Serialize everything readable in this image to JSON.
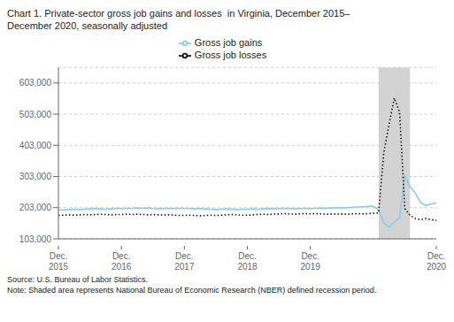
{
  "chart_data": {
    "type": "line",
    "title": "Chart 1. Private-sector gross job gains and losses  in Virginia, December 2015–\nDecember 2020, seasonally adjusted",
    "annotations": [
      "Source: U.S. Bureau of Labor Statistics.",
      "Note: Shaded area represents National Bureau of Economic Research (NBER) defined recession period."
    ],
    "categories": [
      "Dec.\n2015",
      null,
      null,
      null,
      null,
      null,
      null,
      null,
      null,
      null,
      null,
      null,
      "Dec.\n2016",
      null,
      null,
      null,
      null,
      null,
      null,
      null,
      null,
      null,
      null,
      null,
      "Dec.\n2017",
      null,
      null,
      null,
      null,
      null,
      null,
      null,
      null,
      null,
      null,
      null,
      "Dec.\n2018",
      null,
      null,
      null,
      null,
      null,
      null,
      null,
      null,
      null,
      null,
      null,
      "Dec.\n2019",
      null,
      null,
      null,
      null,
      null,
      null,
      null,
      null,
      null,
      null,
      null,
      null,
      null,
      null,
      null,
      null,
      null,
      null,
      null,
      null,
      null,
      null,
      null,
      "Dec.\n2020"
    ],
    "series": [
      {
        "name": "Gross job gains",
        "color": "#87CEEB",
        "line_style": "solid",
        "values": [
          195000,
          196000,
          197000,
          198000,
          197000,
          198000,
          199000,
          200000,
          199000,
          198000,
          199000,
          200000,
          200000,
          200000,
          201000,
          202000,
          201000,
          202000,
          200000,
          199000,
          200000,
          201000,
          200000,
          201000,
          201000,
          200000,
          199000,
          200000,
          199000,
          198000,
          197000,
          198000,
          199000,
          198000,
          197000,
          198000,
          198000,
          199000,
          198000,
          199000,
          200000,
          199000,
          200000,
          201000,
          200000,
          199000,
          200000,
          201000,
          200000,
          201000,
          202000,
          201000,
          202000,
          203000,
          202000,
          203000,
          204000,
          205000,
          206000,
          207000,
          208000,
          195000,
          155000,
          140000,
          158000,
          170000,
          305000,
          270000,
          250000,
          220000,
          210000,
          215000,
          218000
        ]
      },
      {
        "name": "Gross job losses",
        "color": "#111111",
        "line_style": "dotted",
        "values": [
          178000,
          179000,
          180000,
          179000,
          180000,
          181000,
          180000,
          181000,
          182000,
          181000,
          180000,
          181000,
          181000,
          182000,
          181000,
          182000,
          181000,
          180000,
          181000,
          180000,
          179000,
          180000,
          179000,
          178000,
          178000,
          179000,
          178000,
          177000,
          178000,
          179000,
          178000,
          179000,
          180000,
          181000,
          180000,
          179000,
          179000,
          180000,
          181000,
          182000,
          181000,
          182000,
          183000,
          184000,
          183000,
          182000,
          183000,
          184000,
          183000,
          184000,
          183000,
          182000,
          183000,
          182000,
          183000,
          182000,
          183000,
          184000,
          183000,
          184000,
          185000,
          186000,
          380000,
          470000,
          555000,
          510000,
          200000,
          178000,
          168000,
          165000,
          168000,
          165000,
          162000
        ]
      }
    ],
    "ylim": [
      103000,
      653000
    ],
    "yticks": [
      {
        "value": 103000,
        "label": "103,000"
      },
      {
        "value": 203000,
        "label": "203,000"
      },
      {
        "value": 303000,
        "label": "303,000"
      },
      {
        "value": 403000,
        "label": "403,000"
      },
      {
        "value": 503000,
        "label": "503,000"
      },
      {
        "value": 603000,
        "label": "603,000"
      }
    ],
    "grid": true,
    "legend": "top",
    "shading": {
      "start": 61,
      "end": 67,
      "color": "#d3d3d3"
    }
  }
}
